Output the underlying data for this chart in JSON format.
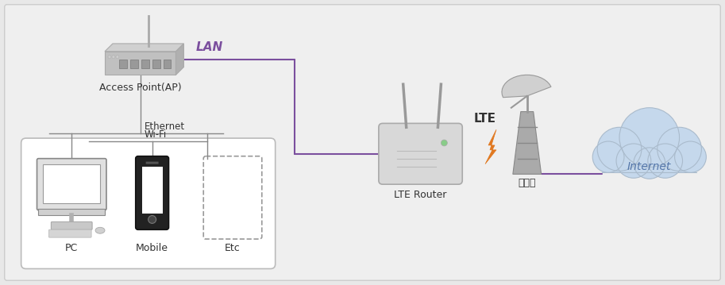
{
  "bg_color": "#e8e8e8",
  "panel_color": "#efefef",
  "border_color": "#cccccc",
  "line_color": "#7b4f9e",
  "lte_color": "#e07820",
  "text_color": "#333333",
  "lan_color": "#7b4f9e",
  "internet_text_color": "#5577aa",
  "cloud_color": "#c5d8ec",
  "cloud_edge": "#aabbcc",
  "labels": {
    "ap": "Access Point(AP)",
    "pc": "PC",
    "mobile": "Mobile",
    "etc": "Etc",
    "ethernet": "Ethernet",
    "wifi": "Wi-Fi",
    "lan": "LAN",
    "lte_router": "LTE Router",
    "lte": "LTE",
    "gijiguk": "기지국",
    "internet": "Internet"
  },
  "figsize": [
    9.13,
    3.59
  ],
  "dpi": 100
}
